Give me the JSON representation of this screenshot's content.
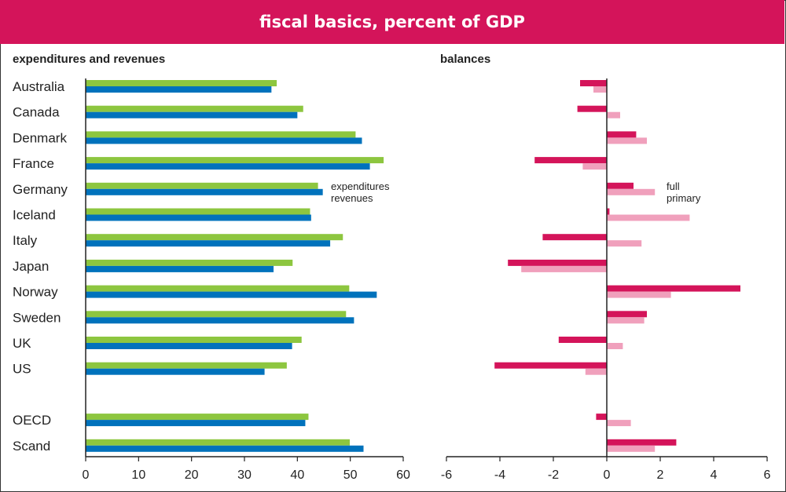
{
  "title": "fiscal basics, percent of GDP",
  "colors": {
    "header": "#d4145a",
    "expenditures": "#8dc63f",
    "revenues": "#0072bc",
    "full": "#d4145a",
    "primary": "#f0a0bc",
    "axis": "#222222",
    "text": "#222222"
  },
  "chart_data": [
    {
      "type": "bar",
      "orientation": "horizontal",
      "title": "expenditures and revenues",
      "categories": [
        "Australia",
        "Canada",
        "Denmark",
        "France",
        "Germany",
        "Iceland",
        "Italy",
        "Japan",
        "Norway",
        "Sweden",
        "UK",
        "US",
        "OECD",
        "Scand"
      ],
      "series": [
        {
          "name": "expenditures",
          "values": [
            36.1,
            41.1,
            51.0,
            56.3,
            43.9,
            42.4,
            48.6,
            39.1,
            49.8,
            49.2,
            40.8,
            38.0,
            42.1,
            49.9
          ]
        },
        {
          "name": "revenues",
          "values": [
            35.1,
            40.0,
            52.2,
            53.7,
            44.8,
            42.6,
            46.2,
            35.5,
            55.0,
            50.7,
            39.0,
            33.8,
            41.5,
            52.5
          ]
        }
      ],
      "xlim": [
        0,
        60
      ],
      "xticks": [
        0,
        10,
        20,
        30,
        40,
        50,
        60
      ],
      "legend": "inside, beside Germany"
    },
    {
      "type": "bar",
      "orientation": "horizontal",
      "title": "balances",
      "categories": [
        "Australia",
        "Canada",
        "Denmark",
        "France",
        "Germany",
        "Iceland",
        "Italy",
        "Japan",
        "Norway",
        "Sweden",
        "UK",
        "US",
        "OECD",
        "Scand"
      ],
      "series": [
        {
          "name": "full",
          "values": [
            -1.0,
            -1.1,
            1.1,
            -2.7,
            1.0,
            0.1,
            -2.4,
            -3.7,
            5.0,
            1.5,
            -1.8,
            -4.2,
            -0.4,
            2.6
          ]
        },
        {
          "name": "primary",
          "values": [
            -0.5,
            0.5,
            1.5,
            -0.9,
            1.8,
            3.1,
            1.3,
            -3.2,
            2.4,
            1.4,
            0.6,
            -0.8,
            0.9,
            1.8
          ]
        }
      ],
      "xlim": [
        -6,
        6
      ],
      "xticks": [
        -6,
        -4,
        -2,
        0,
        2,
        4,
        6
      ],
      "legend": "inside, beside Germany"
    }
  ]
}
